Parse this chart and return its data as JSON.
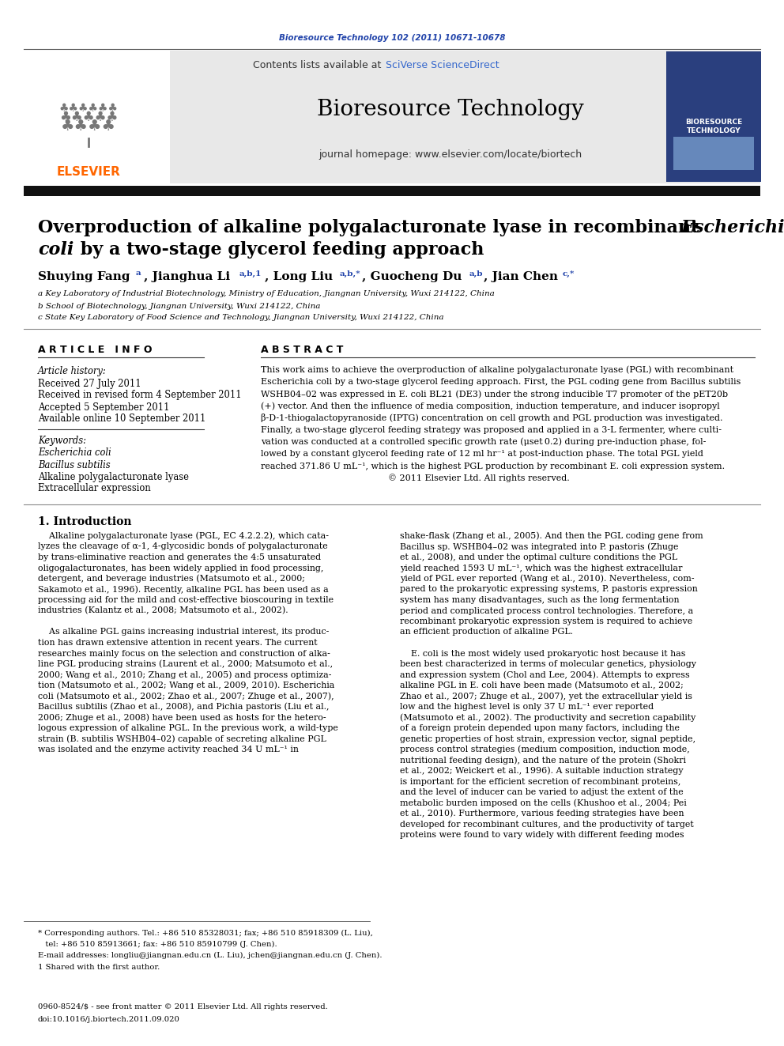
{
  "journal_ref": "Bioresource Technology 102 (2011) 10671-10678",
  "journal_name": "Bioresource Technology",
  "journal_homepage": "journal homepage: www.elsevier.com/locate/biortech",
  "contents_text": "Contents lists available at SciVerse ScienceDirect",
  "affil_a": "a Key Laboratory of Industrial Biotechnology, Ministry of Education, Jiangnan University, Wuxi 214122, China",
  "affil_b": "b School of Biotechnology, Jiangnan University, Wuxi 214122, China",
  "affil_c": "c State Key Laboratory of Food Science and Technology, Jiangnan University, Wuxi 214122, China",
  "article_info_header": "A R T I C L E   I N F O",
  "abstract_header": "A B S T R A C T",
  "article_history_label": "Article history:",
  "received": "Received 27 July 2011",
  "received_revised": "Received in revised form 4 September 2011",
  "accepted": "Accepted 5 September 2011",
  "available": "Available online 10 September 2011",
  "keywords_label": "Keywords:",
  "kw1": "Escherichia coli",
  "kw2": "Bacillus subtilis",
  "kw3": "Alkaline polygalacturonate lyase",
  "kw4": "Extracellular expression",
  "intro_header": "1. Introduction",
  "footnote_corr": "* Corresponding authors. Tel.: +86 510 85328031; fax; +86 510 85918309 (L. Liu),",
  "footnote_corr2": "   tel: +86 510 85913661; fax: +86 510 85910799 (J. Chen).",
  "footnote_email": "E-mail addresses: longliu@jiangnan.edu.cn (L. Liu), jchen@jiangnan.edu.cn (J. Chen).",
  "footnote_1": "1 Shared with the first author.",
  "footer_issn": "0960-8524/$ - see front matter © 2011 Elsevier Ltd. All rights reserved.",
  "footer_doi": "doi:10.1016/j.biortech.2011.09.020",
  "bg_color": "#ffffff",
  "header_bg": "#e8e8e8",
  "black_bar_color": "#111111",
  "journal_ref_color": "#2244aa",
  "sciverse_color": "#3366cc",
  "elsevier_color": "#ff6600",
  "thin_line_color": "#888888"
}
